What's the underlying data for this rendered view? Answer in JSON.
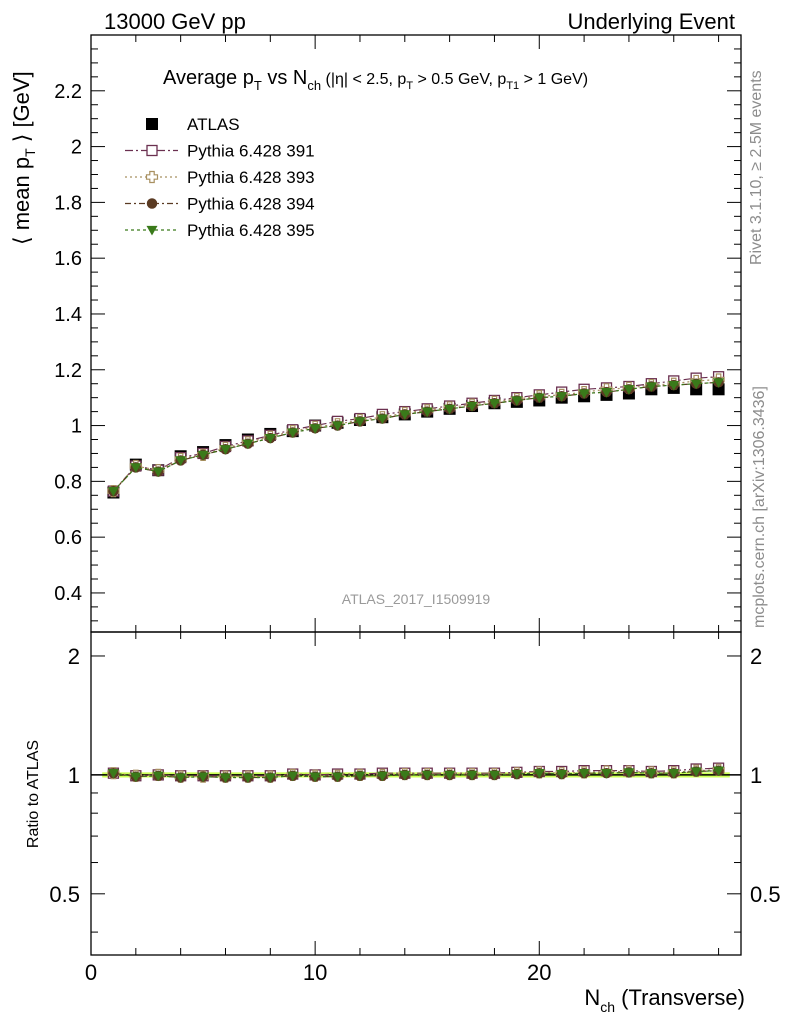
{
  "header": {
    "left": "13000 GeV pp",
    "right": "Underlying Event"
  },
  "side_labels": {
    "rivet": "Rivet 3.1.10, ≥ 2.5M events",
    "mcplots": "mcplots.cern.ch [arXiv:1306.3436]"
  },
  "watermark": "ATLAS_2017_I1509919",
  "chart_data": [
    {
      "type": "scatter",
      "title": "Average p_T vs N_ch (|η| < 2.5, p_T > 0.5 GeV, p_T1 > 1 GeV)",
      "title_parts": {
        "a": "Average p",
        "a_sub": "T",
        "b": " vs N",
        "b_sub": "ch",
        "c": " (|η| < 2.5, p",
        "c_sub": "T",
        "d": " > 0.5 GeV, p",
        "d_sub": "T1",
        "e": " > 1 GeV)"
      },
      "ylabel": "⟨ mean p_T ⟩ [GeV]",
      "ylabel_parts": {
        "a": "⟨ mean p",
        "sub": "T",
        "b": " ⟩ [GeV]"
      },
      "xlim": [
        0,
        29
      ],
      "ylim": [
        0.26,
        2.4
      ],
      "yticks": [
        0.4,
        0.6,
        0.8,
        1,
        1.2,
        1.4,
        1.6,
        1.8,
        2,
        2.2
      ],
      "ytick_labels": [
        "0.4",
        "0.6",
        "0.8",
        "1",
        "1.2",
        "1.4",
        "1.6",
        "1.8",
        "2",
        "2.2"
      ],
      "legend_position": "top-left",
      "x": [
        1,
        2,
        3,
        4,
        5,
        6,
        7,
        8,
        9,
        10,
        11,
        12,
        13,
        14,
        15,
        16,
        17,
        18,
        19,
        20,
        21,
        22,
        23,
        24,
        25,
        26,
        27,
        28
      ],
      "series": [
        {
          "name": "ATLAS",
          "color": "#000000",
          "marker": "square-filled",
          "values": [
            0.76,
            0.86,
            0.84,
            0.89,
            0.905,
            0.93,
            0.95,
            0.97,
            0.98,
            1.0,
            1.01,
            1.02,
            1.03,
            1.04,
            1.05,
            1.06,
            1.07,
            1.08,
            1.085,
            1.09,
            1.1,
            1.105,
            1.11,
            1.115,
            1.13,
            1.135,
            1.13,
            1.13
          ]
        },
        {
          "name": "Pythia 6.428 391",
          "color": "#6b3050",
          "marker": "square-open",
          "values": [
            0.765,
            0.855,
            0.84,
            0.885,
            0.9,
            0.925,
            0.945,
            0.965,
            0.985,
            1.0,
            1.015,
            1.025,
            1.04,
            1.05,
            1.06,
            1.07,
            1.08,
            1.09,
            1.1,
            1.11,
            1.12,
            1.13,
            1.135,
            1.14,
            1.15,
            1.16,
            1.17,
            1.175
          ]
        },
        {
          "name": "Pythia 6.428 393",
          "color": "#a89060",
          "marker": "cross-open",
          "values": [
            0.765,
            0.855,
            0.84,
            0.88,
            0.895,
            0.92,
            0.94,
            0.96,
            0.98,
            0.995,
            1.005,
            1.02,
            1.03,
            1.045,
            1.055,
            1.065,
            1.075,
            1.085,
            1.095,
            1.105,
            1.11,
            1.12,
            1.13,
            1.135,
            1.145,
            1.15,
            1.16,
            1.165
          ]
        },
        {
          "name": "Pythia 6.428 394",
          "color": "#5a3a22",
          "marker": "circle-filled",
          "values": [
            0.765,
            0.85,
            0.835,
            0.875,
            0.895,
            0.915,
            0.935,
            0.955,
            0.975,
            0.99,
            1.0,
            1.015,
            1.025,
            1.04,
            1.05,
            1.06,
            1.07,
            1.08,
            1.09,
            1.1,
            1.105,
            1.115,
            1.12,
            1.13,
            1.14,
            1.145,
            1.15,
            1.155
          ]
        },
        {
          "name": "Pythia 6.428 395",
          "color": "#3a7a1a",
          "marker": "triangle-down-filled",
          "values": [
            0.765,
            0.85,
            0.835,
            0.875,
            0.895,
            0.915,
            0.935,
            0.955,
            0.975,
            0.99,
            1.0,
            1.015,
            1.025,
            1.04,
            1.05,
            1.06,
            1.07,
            1.08,
            1.09,
            1.1,
            1.105,
            1.115,
            1.12,
            1.13,
            1.14,
            1.145,
            1.15,
            1.155
          ]
        }
      ]
    },
    {
      "type": "scatter",
      "ylabel": "Ratio to ATLAS",
      "xlabel": "N_ch (Transverse)",
      "xlabel_parts": {
        "a": "N",
        "sub": "ch",
        "b": " (Transverse)"
      },
      "xlim": [
        0,
        29
      ],
      "xticks": [
        0,
        10,
        20
      ],
      "xtick_labels": [
        "0",
        "10",
        "20"
      ],
      "ylim": [
        0.35,
        2.3
      ],
      "yticks": [
        0.5,
        1,
        2
      ],
      "ytick_labels": [
        "0.5",
        "1",
        "2"
      ],
      "band": {
        "color": "#ccff55",
        "range": [
          0.985,
          1.015
        ]
      },
      "reference_line": 1,
      "x": [
        1,
        2,
        3,
        4,
        5,
        6,
        7,
        8,
        9,
        10,
        11,
        12,
        13,
        14,
        15,
        16,
        17,
        18,
        19,
        20,
        21,
        22,
        23,
        24,
        25,
        26,
        27,
        28
      ],
      "series": [
        {
          "name": "Pythia 6.428 391",
          "color": "#6b3050",
          "marker": "square-open",
          "values": [
            1.01,
            0.995,
            1.0,
            0.995,
            0.995,
            0.995,
            0.995,
            0.995,
            1.005,
            1.0,
            1.005,
            1.005,
            1.01,
            1.01,
            1.01,
            1.01,
            1.01,
            1.01,
            1.015,
            1.02,
            1.02,
            1.025,
            1.025,
            1.025,
            1.02,
            1.025,
            1.035,
            1.04
          ]
        },
        {
          "name": "Pythia 6.428 393",
          "color": "#a89060",
          "marker": "cross-open",
          "values": [
            1.01,
            0.995,
            1.0,
            0.99,
            0.99,
            0.99,
            0.99,
            0.99,
            1.0,
            0.995,
            0.995,
            1.0,
            1.0,
            1.005,
            1.005,
            1.005,
            1.005,
            1.005,
            1.01,
            1.015,
            1.01,
            1.015,
            1.02,
            1.02,
            1.015,
            1.015,
            1.025,
            1.03
          ]
        },
        {
          "name": "Pythia 6.428 394",
          "color": "#5a3a22",
          "marker": "circle-filled",
          "values": [
            1.01,
            0.99,
            0.995,
            0.985,
            0.99,
            0.985,
            0.985,
            0.985,
            0.995,
            0.99,
            0.99,
            0.995,
            0.995,
            1.0,
            1.0,
            1.0,
            1.0,
            1.0,
            1.005,
            1.01,
            1.005,
            1.01,
            1.01,
            1.015,
            1.01,
            1.01,
            1.02,
            1.025
          ]
        },
        {
          "name": "Pythia 6.428 395",
          "color": "#3a7a1a",
          "marker": "triangle-down-filled",
          "values": [
            1.01,
            0.99,
            0.995,
            0.985,
            0.99,
            0.985,
            0.985,
            0.985,
            0.995,
            0.99,
            0.99,
            0.995,
            0.995,
            1.0,
            1.0,
            1.0,
            1.0,
            1.0,
            1.005,
            1.01,
            1.005,
            1.01,
            1.01,
            1.015,
            1.01,
            1.01,
            1.02,
            1.025
          ]
        }
      ]
    }
  ]
}
